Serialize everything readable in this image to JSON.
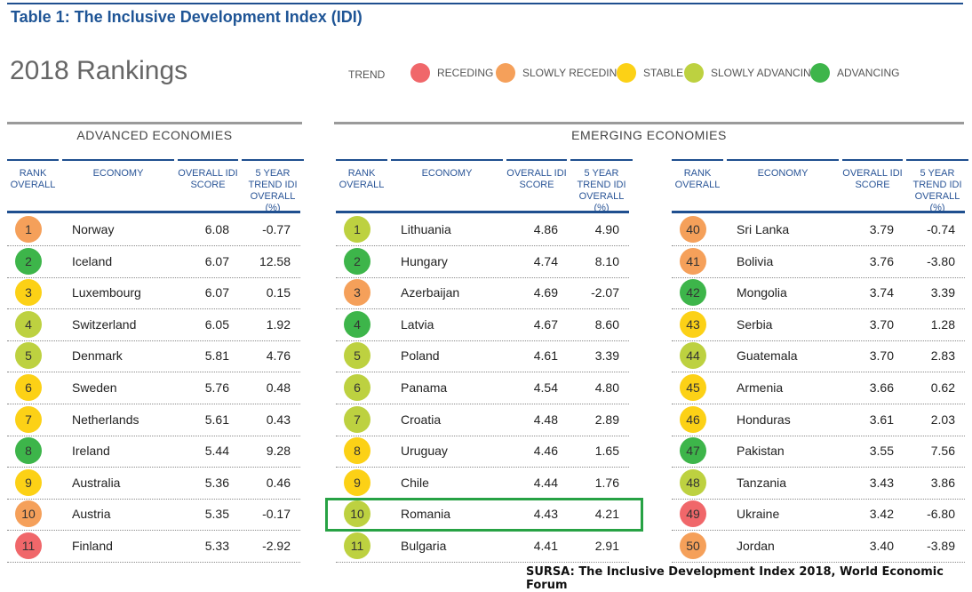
{
  "header": {
    "table_title": "Table 1: The Inclusive Development Index (IDI)",
    "rankings_title": "2018 Rankings"
  },
  "legend": {
    "label": "TREND",
    "items": [
      {
        "name": "RECEDING",
        "color": "#f0676a"
      },
      {
        "name": "SLOWLY RECEDING",
        "color": "#f5a05a"
      },
      {
        "name": "STABLE",
        "color": "#fcd116"
      },
      {
        "name": "SLOWLY ADVANCING",
        "color": "#bdd140"
      },
      {
        "name": "ADVANCING",
        "color": "#3db54a"
      }
    ]
  },
  "groups": {
    "advanced": "ADVANCED ECONOMIES",
    "emerging": "EMERGING ECONOMIES"
  },
  "columns": {
    "rank": "RANK OVERALL",
    "economy": "ECONOMY",
    "score": "OVERALL IDI SCORE",
    "trend": "5 YEAR TREND IDI OVERALL (%)"
  },
  "tables": [
    {
      "id": "advanced",
      "rows": [
        {
          "rank": "1",
          "economy": "Norway",
          "score": "6.08",
          "trend": "-0.77",
          "trend_class": "slowly-receding"
        },
        {
          "rank": "2",
          "economy": "Iceland",
          "score": "6.07",
          "trend": "12.58",
          "trend_class": "advancing"
        },
        {
          "rank": "3",
          "economy": "Luxembourg",
          "score": "6.07",
          "trend": "0.15",
          "trend_class": "stable"
        },
        {
          "rank": "4",
          "economy": "Switzerland",
          "score": "6.05",
          "trend": "1.92",
          "trend_class": "slowly-advancing"
        },
        {
          "rank": "5",
          "economy": "Denmark",
          "score": "5.81",
          "trend": "4.76",
          "trend_class": "slowly-advancing"
        },
        {
          "rank": "6",
          "economy": "Sweden",
          "score": "5.76",
          "trend": "0.48",
          "trend_class": "stable"
        },
        {
          "rank": "7",
          "economy": "Netherlands",
          "score": "5.61",
          "trend": "0.43",
          "trend_class": "stable"
        },
        {
          "rank": "8",
          "economy": "Ireland",
          "score": "5.44",
          "trend": "9.28",
          "trend_class": "advancing"
        },
        {
          "rank": "9",
          "economy": "Australia",
          "score": "5.36",
          "trend": "0.46",
          "trend_class": "stable"
        },
        {
          "rank": "10",
          "economy": "Austria",
          "score": "5.35",
          "trend": "-0.17",
          "trend_class": "slowly-receding"
        },
        {
          "rank": "11",
          "economy": "Finland",
          "score": "5.33",
          "trend": "-2.92",
          "trend_class": "receding"
        }
      ]
    },
    {
      "id": "emerging-1",
      "rows": [
        {
          "rank": "1",
          "economy": "Lithuania",
          "score": "4.86",
          "trend": "4.90",
          "trend_class": "slowly-advancing"
        },
        {
          "rank": "2",
          "economy": "Hungary",
          "score": "4.74",
          "trend": "8.10",
          "trend_class": "advancing"
        },
        {
          "rank": "3",
          "economy": "Azerbaijan",
          "score": "4.69",
          "trend": "-2.07",
          "trend_class": "slowly-receding"
        },
        {
          "rank": "4",
          "economy": "Latvia",
          "score": "4.67",
          "trend": "8.60",
          "trend_class": "advancing"
        },
        {
          "rank": "5",
          "economy": "Poland",
          "score": "4.61",
          "trend": "3.39",
          "trend_class": "slowly-advancing"
        },
        {
          "rank": "6",
          "economy": "Panama",
          "score": "4.54",
          "trend": "4.80",
          "trend_class": "slowly-advancing"
        },
        {
          "rank": "7",
          "economy": "Croatia",
          "score": "4.48",
          "trend": "2.89",
          "trend_class": "slowly-advancing"
        },
        {
          "rank": "8",
          "economy": "Uruguay",
          "score": "4.46",
          "trend": "1.65",
          "trend_class": "stable"
        },
        {
          "rank": "9",
          "economy": "Chile",
          "score": "4.44",
          "trend": "1.76",
          "trend_class": "stable"
        },
        {
          "rank": "10",
          "economy": "Romania",
          "score": "4.43",
          "trend": "4.21",
          "trend_class": "slowly-advancing"
        },
        {
          "rank": "11",
          "economy": "Bulgaria",
          "score": "4.41",
          "trend": "2.91",
          "trend_class": "slowly-advancing"
        }
      ]
    },
    {
      "id": "emerging-2",
      "rows": [
        {
          "rank": "40",
          "economy": "Sri Lanka",
          "score": "3.79",
          "trend": "-0.74",
          "trend_class": "slowly-receding"
        },
        {
          "rank": "41",
          "economy": "Bolivia",
          "score": "3.76",
          "trend": "-3.80",
          "trend_class": "slowly-receding"
        },
        {
          "rank": "42",
          "economy": "Mongolia",
          "score": "3.74",
          "trend": "3.39",
          "trend_class": "advancing"
        },
        {
          "rank": "43",
          "economy": "Serbia",
          "score": "3.70",
          "trend": "1.28",
          "trend_class": "stable"
        },
        {
          "rank": "44",
          "economy": "Guatemala",
          "score": "3.70",
          "trend": "2.83",
          "trend_class": "slowly-advancing"
        },
        {
          "rank": "45",
          "economy": "Armenia",
          "score": "3.66",
          "trend": "0.62",
          "trend_class": "stable"
        },
        {
          "rank": "46",
          "economy": "Honduras",
          "score": "3.61",
          "trend": "2.03",
          "trend_class": "stable"
        },
        {
          "rank": "47",
          "economy": "Pakistan",
          "score": "3.55",
          "trend": "7.56",
          "trend_class": "advancing"
        },
        {
          "rank": "48",
          "economy": "Tanzania",
          "score": "3.43",
          "trend": "3.86",
          "trend_class": "slowly-advancing"
        },
        {
          "rank": "49",
          "economy": "Ukraine",
          "score": "3.42",
          "trend": "-6.80",
          "trend_class": "receding"
        },
        {
          "rank": "50",
          "economy": "Jordan",
          "score": "3.40",
          "trend": "-3.89",
          "trend_class": "slowly-receding"
        }
      ]
    }
  ],
  "trend_colors": {
    "receding": "#f0676a",
    "slowly-receding": "#f5a05a",
    "stable": "#fcd116",
    "slowly-advancing": "#bdd140",
    "advancing": "#3db54a"
  },
  "highlight": {
    "table": "emerging-1",
    "row_rank": "10",
    "color": "#27a244"
  },
  "source": "SURSA: The Inclusive Development Index 2018, World Economic Forum"
}
